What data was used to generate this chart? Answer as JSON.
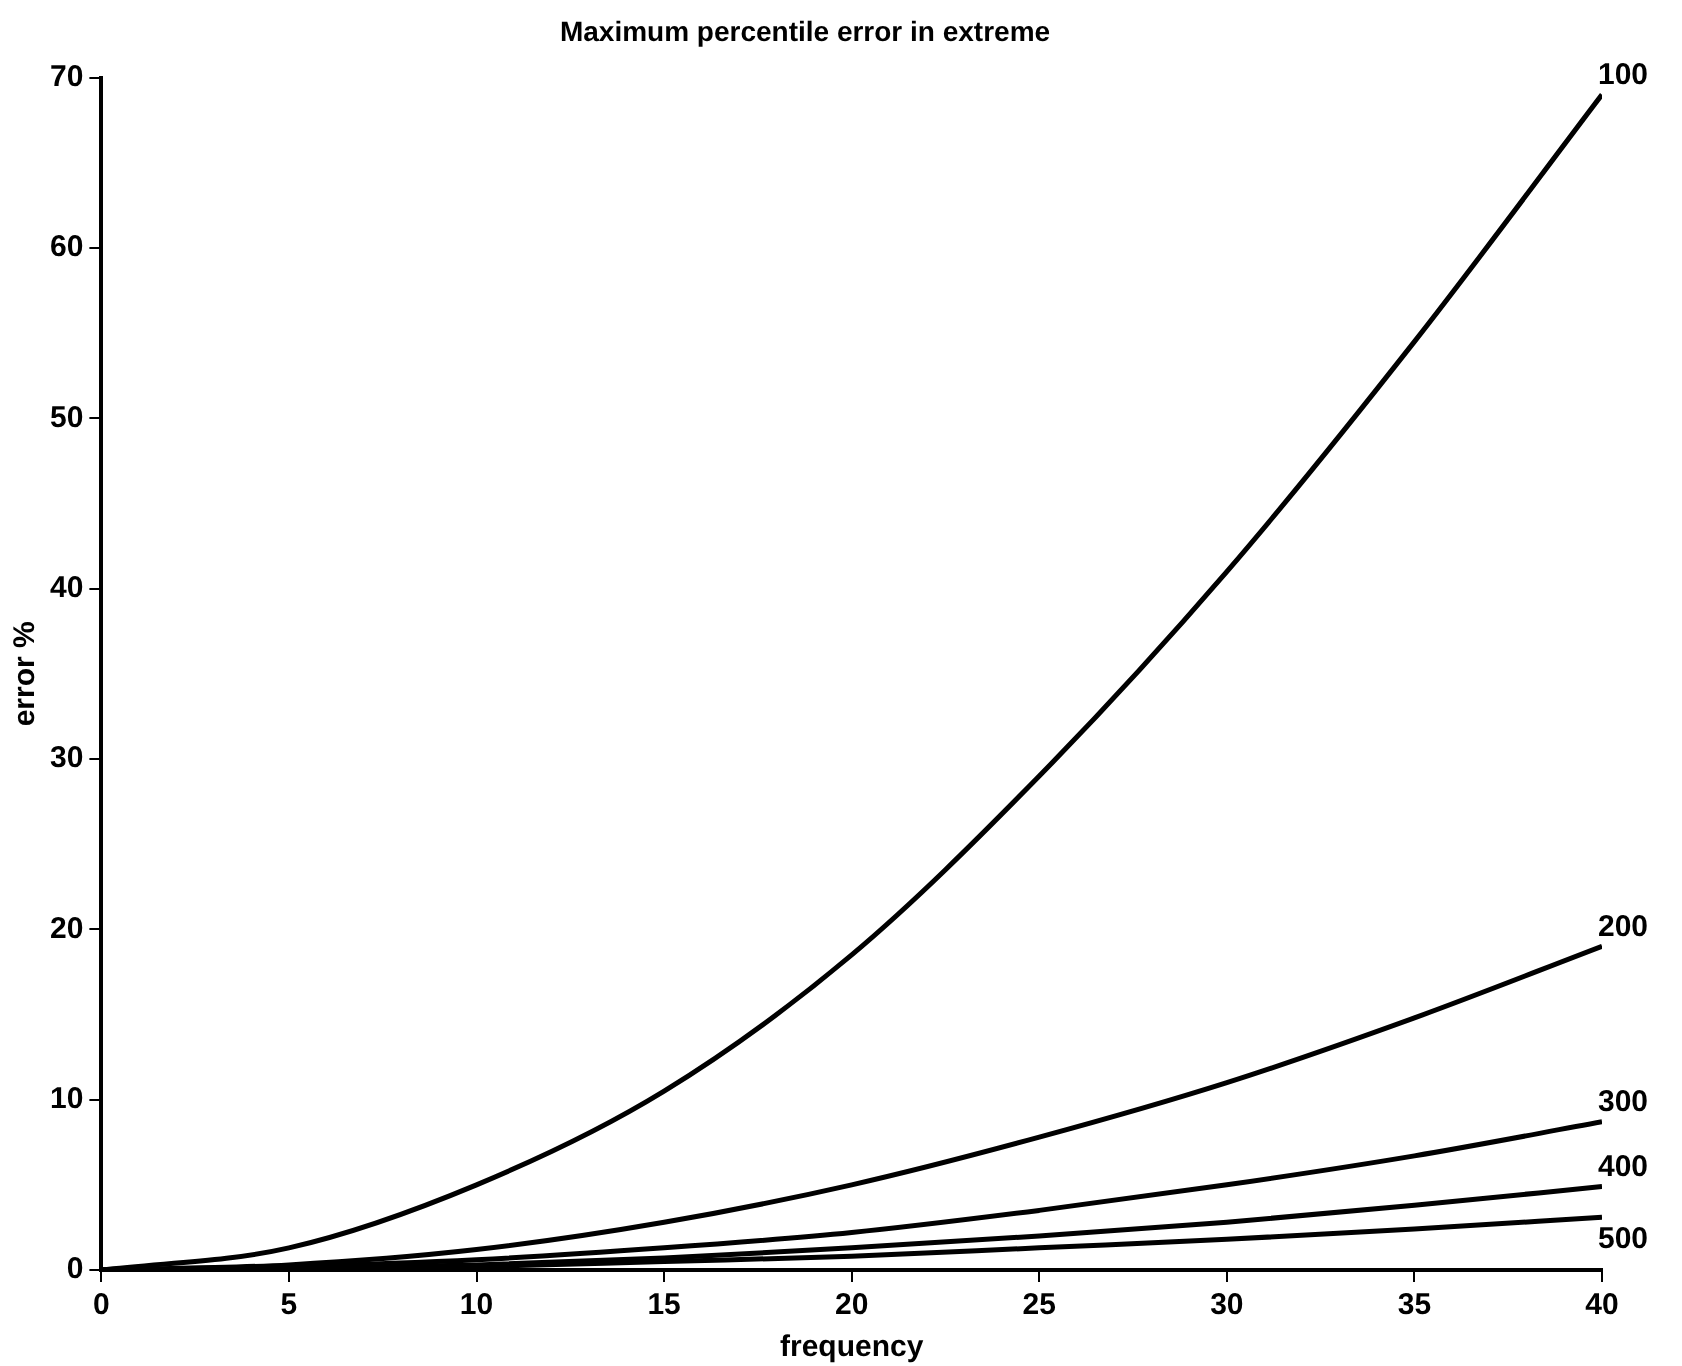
{
  "chart_data": {
    "type": "line",
    "title": "Maximum percentile error in extreme",
    "xlabel": "frequency",
    "ylabel": "error %",
    "x": [
      0,
      5,
      10,
      15,
      20,
      25,
      30,
      35,
      40
    ],
    "series": [
      {
        "name": "100",
        "color": "#000000",
        "values": [
          0,
          1.3,
          5,
          10.5,
          18.5,
          29,
          41,
          54.5,
          69
        ]
      },
      {
        "name": "200",
        "color": "#000000",
        "values": [
          0,
          0.3,
          1.2,
          2.8,
          5,
          7.8,
          11,
          14.8,
          19
        ]
      },
      {
        "name": "300",
        "color": "#000000",
        "values": [
          0,
          0.2,
          0.6,
          1.3,
          2.2,
          3.5,
          5,
          6.7,
          8.7
        ]
      },
      {
        "name": "400",
        "color": "#000000",
        "values": [
          0,
          0.1,
          0.3,
          0.7,
          1.3,
          2,
          2.8,
          3.8,
          4.9
        ]
      },
      {
        "name": "500",
        "color": "#000000",
        "values": [
          0,
          0.1,
          0.2,
          0.5,
          0.8,
          1.3,
          1.8,
          2.4,
          3.1
        ]
      }
    ],
    "xlim": [
      0,
      40
    ],
    "xticks": [
      0,
      5,
      10,
      15,
      20,
      25,
      30,
      35,
      40
    ],
    "ylim": [
      0,
      70
    ],
    "yticks": [
      0,
      10,
      20,
      30,
      40,
      50,
      60,
      70
    ],
    "grid": false,
    "legend": false,
    "marker": "none",
    "line_style": "solid"
  }
}
